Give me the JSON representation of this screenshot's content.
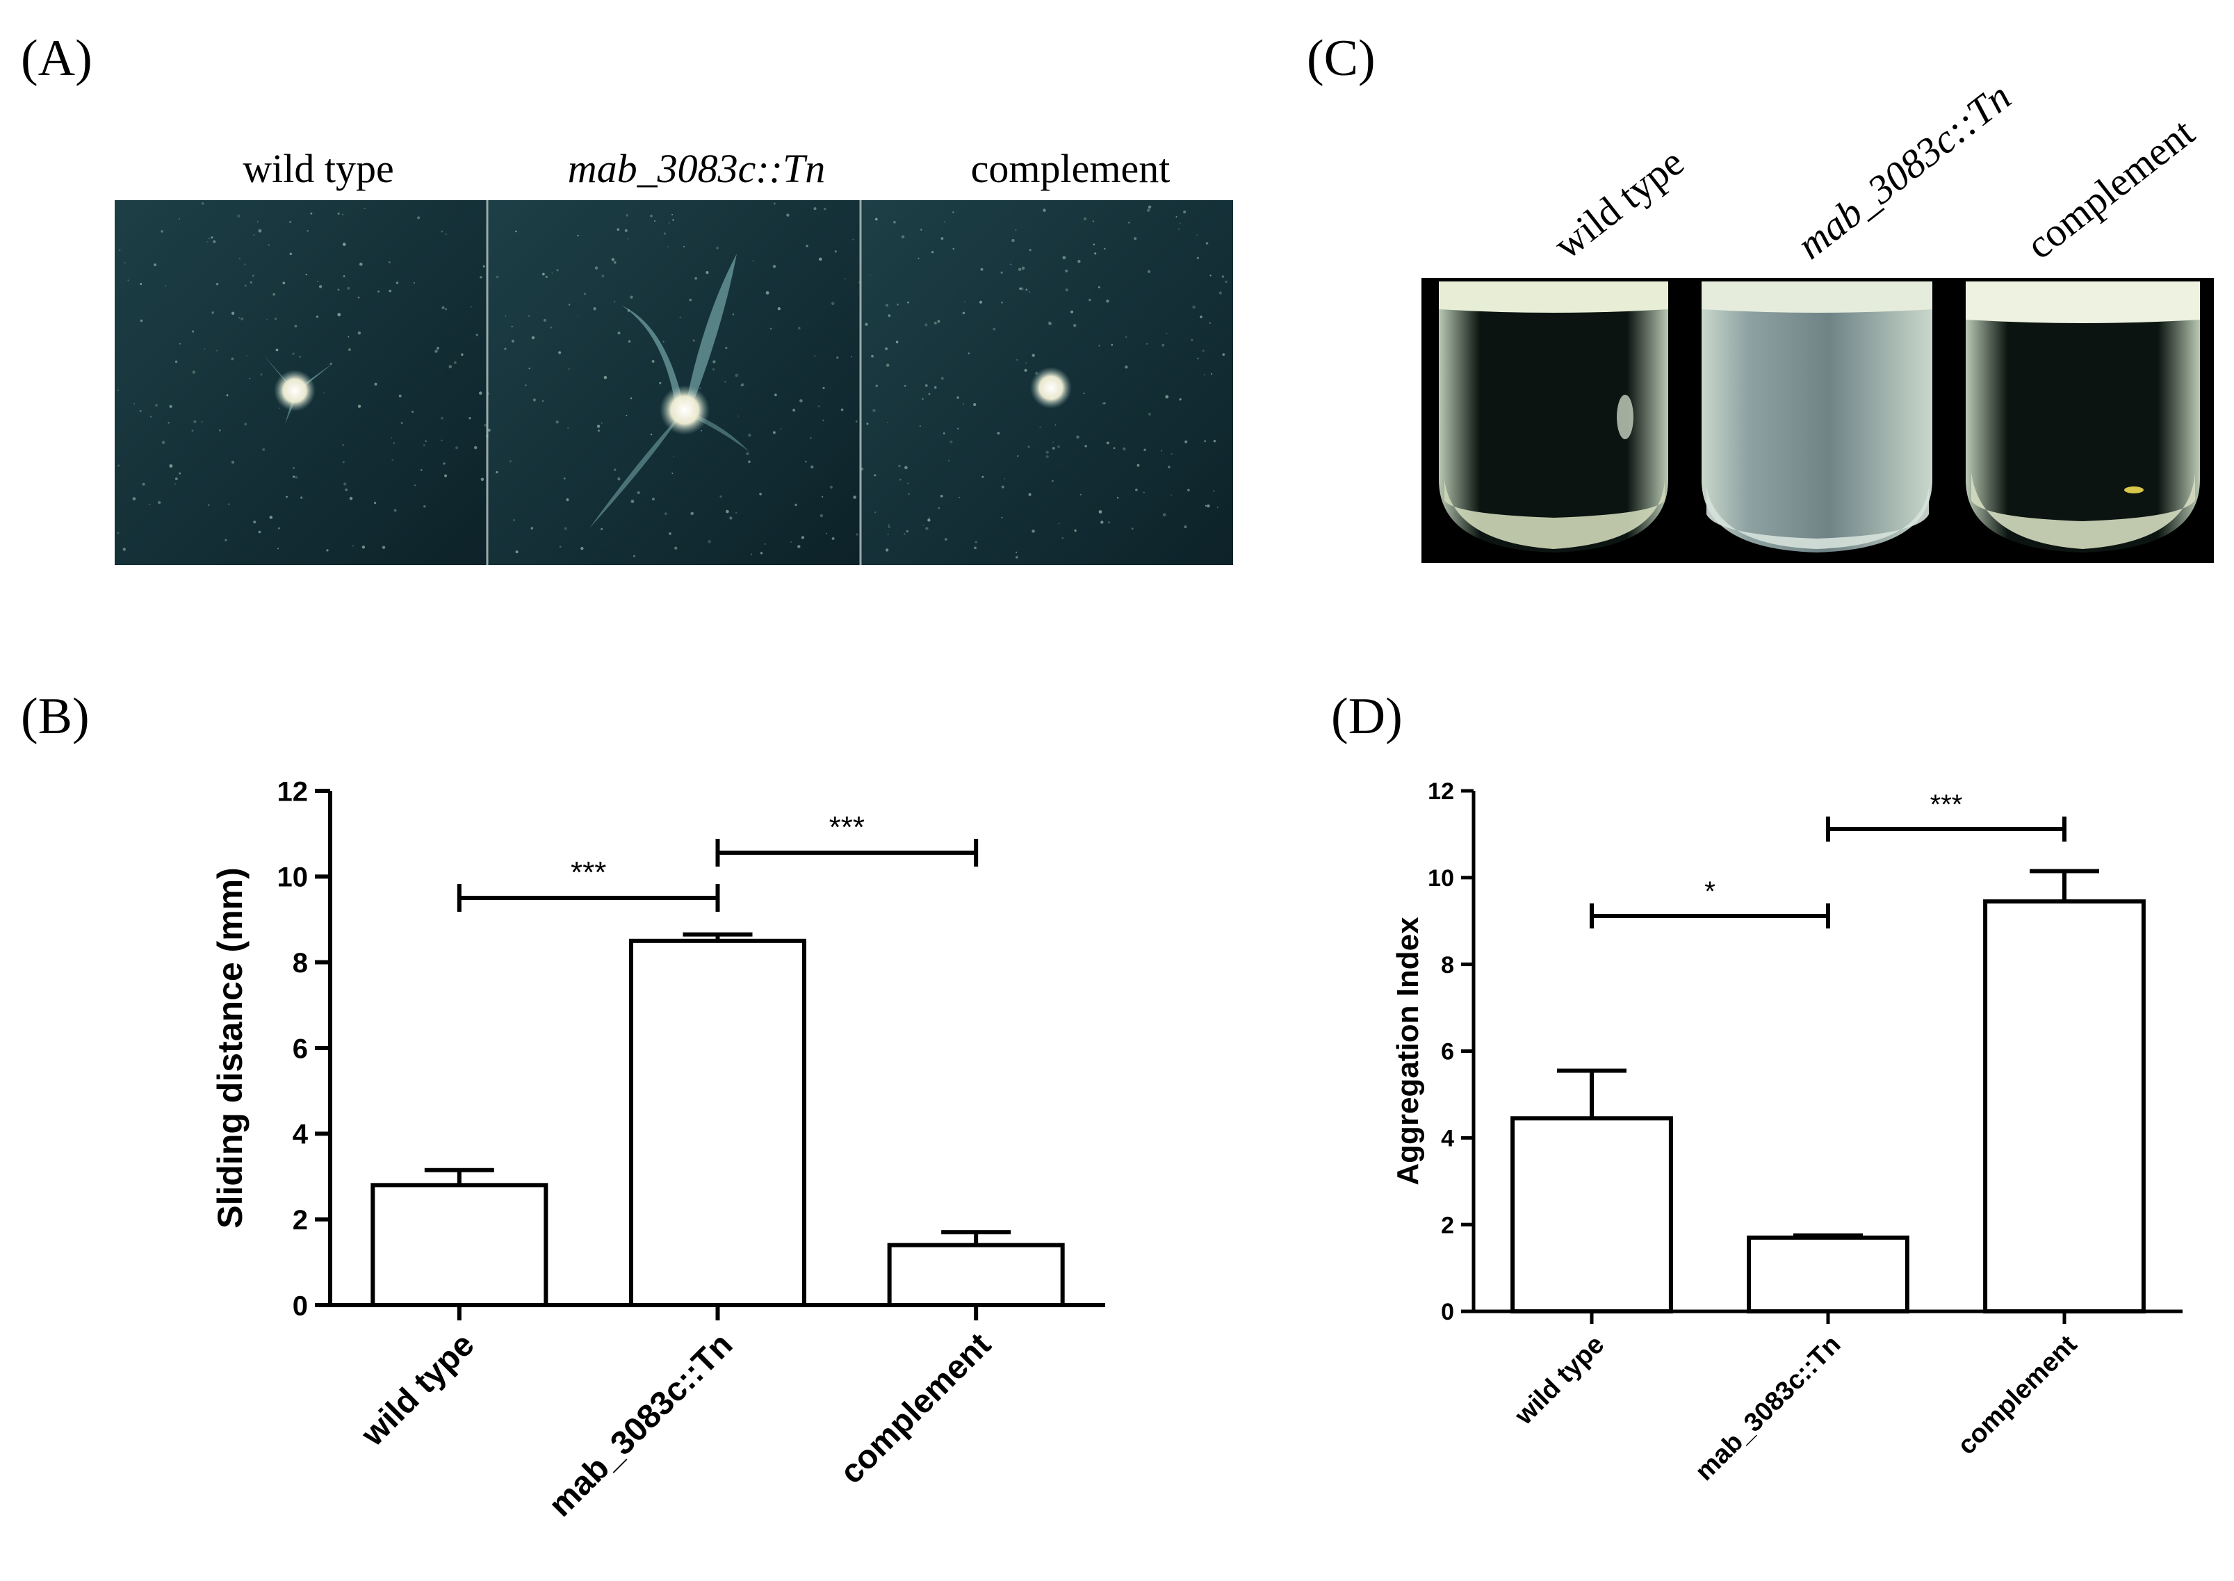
{
  "figure": {
    "panel_labels": {
      "a": "(A)",
      "b": "(B)",
      "c": "(C)",
      "d": "(D)"
    },
    "photo_a": {
      "labels": [
        {
          "text": "wild type",
          "italic": false
        },
        {
          "text": "mab_3083c::Tn",
          "italic": true
        },
        {
          "text": "complement",
          "italic": false
        }
      ],
      "colors": {
        "plate": "#14323a",
        "colony": "#f4f1d6"
      }
    },
    "photo_c": {
      "labels": [
        {
          "text": "wild type",
          "italic": false
        },
        {
          "text": "mab_3083c::Tn",
          "italic": true
        },
        {
          "text": "complement",
          "italic": false
        }
      ],
      "colors": {
        "background": "#000000",
        "liquid": "#d8e4d4"
      }
    }
  },
  "chart_data": [
    {
      "type": "bar",
      "panel": "B",
      "categories": [
        "wild type",
        "mab_3083c::Tn",
        "complement"
      ],
      "values": [
        2.8,
        8.5,
        1.4
      ],
      "errors": [
        0.35,
        0.15,
        0.3
      ],
      "ylabel": "Sliding distance (mm)",
      "xlabel": "",
      "ylim": [
        0,
        12
      ],
      "yticks": [
        "0",
        "2",
        "4",
        "6",
        "8",
        "10",
        "12"
      ],
      "significance": [
        {
          "from": 0,
          "to": 1,
          "label": "***"
        },
        {
          "from": 1,
          "to": 2,
          "label": "***"
        }
      ],
      "grid": false,
      "bar_fill": "#ffffff",
      "stroke": "#000000"
    },
    {
      "type": "bar",
      "panel": "D",
      "categories": [
        "wild type",
        "mab_3083c::Tn",
        "complement"
      ],
      "values": [
        4.45,
        1.7,
        9.45
      ],
      "errors": [
        1.1,
        0.05,
        0.7
      ],
      "ylabel": "Aggregation Index",
      "xlabel": "",
      "ylim": [
        0,
        12
      ],
      "yticks": [
        "0",
        "2",
        "4",
        "6",
        "8",
        "10",
        "12"
      ],
      "significance": [
        {
          "from": 0,
          "to": 1,
          "label": "*"
        },
        {
          "from": 1,
          "to": 2,
          "label": "***"
        }
      ],
      "grid": false,
      "bar_fill": "#ffffff",
      "stroke": "#000000"
    }
  ]
}
